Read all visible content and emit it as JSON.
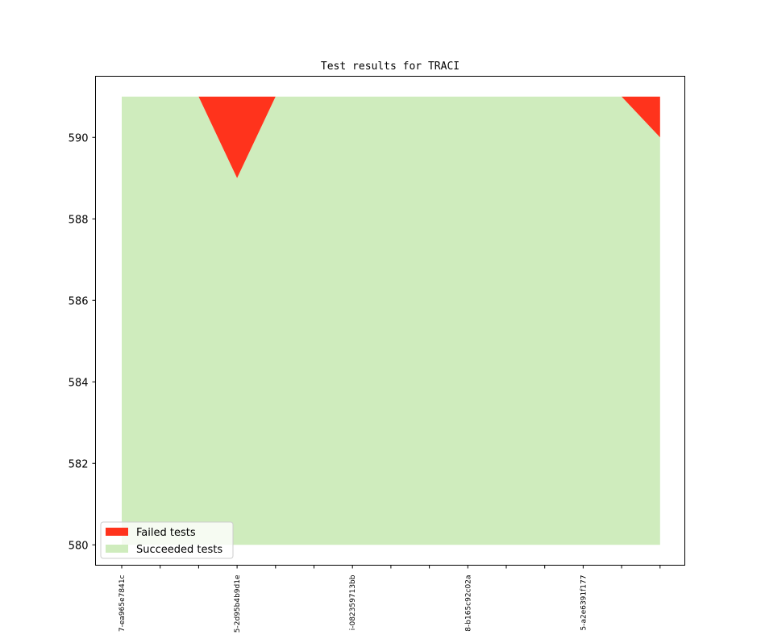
{
  "chart_data": {
    "type": "area",
    "title": "Test results for TRACI",
    "xlabel": "",
    "ylabel": "",
    "x_tick_labels": [
      "7-ea965e7841c",
      "5-2d95b4b9d1e",
      "i-082359713bb",
      "8-b165c92c02a",
      "5-a2e6391f177"
    ],
    "x": [
      0,
      1,
      2,
      3,
      4,
      5,
      6,
      7,
      8,
      9,
      10,
      11,
      12,
      13,
      14
    ],
    "series": [
      {
        "name": "Succeeded tests",
        "color": "#cfecbd",
        "base": 580,
        "values": [
          591,
          591,
          591,
          589,
          591,
          591,
          591,
          591,
          591,
          591,
          591,
          591,
          591,
          591,
          590
        ]
      },
      {
        "name": "Failed tests",
        "color": "#ff331c",
        "values": [
          0,
          0,
          0,
          2,
          0,
          0,
          0,
          0,
          0,
          0,
          0,
          0,
          0,
          0,
          1
        ]
      }
    ],
    "ylim": [
      579.5,
      591.5
    ],
    "yticks": [
      580,
      582,
      584,
      586,
      588,
      590
    ],
    "grid": false,
    "legend_position": "lower-left"
  }
}
